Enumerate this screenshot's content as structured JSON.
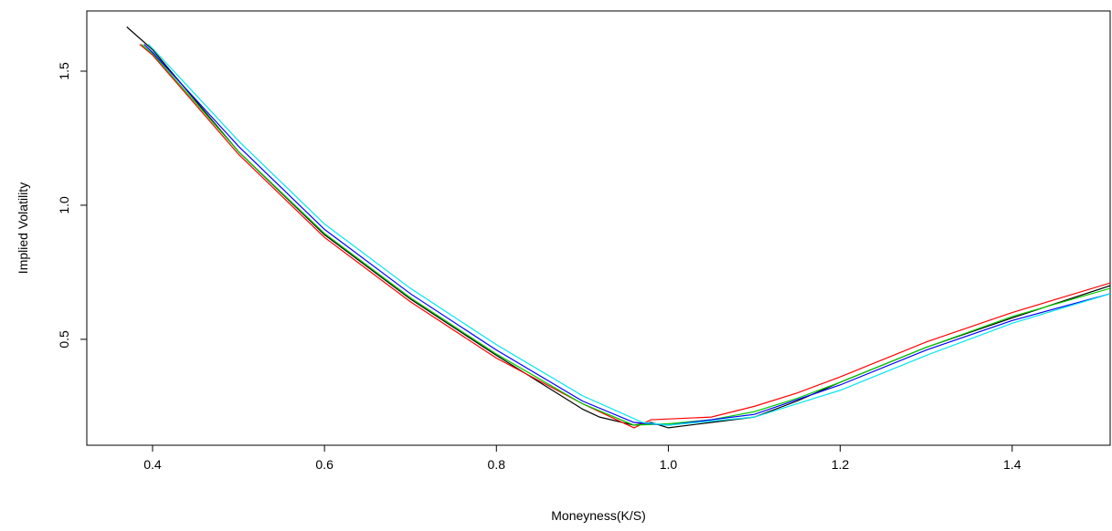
{
  "chart_data": {
    "type": "line",
    "x_label": "Moneyness(K/S)",
    "y_label": "Implied Volatility",
    "xlim": [
      0.3235,
      1.514
    ],
    "ylim": [
      0.105,
      1.7245
    ],
    "xticks": [
      0.4,
      0.6,
      0.8,
      {
        "value": 1,
        "label": "1.0"
      },
      1.2,
      1.4
    ],
    "yticks": [
      0.5,
      {
        "value": 1,
        "label": "1.0"
      },
      1.5
    ],
    "series": [
      {
        "color": "#000000",
        "x": [
          0.37,
          0.4,
          0.5,
          0.6,
          0.7,
          0.8,
          0.9,
          0.92,
          0.96,
          0.98,
          1.0,
          1.05,
          1.1,
          1.15,
          1.2,
          1.3,
          1.4,
          1.514
        ],
        "values": [
          1.665,
          1.58,
          1.2,
          0.89,
          0.65,
          0.44,
          0.24,
          0.21,
          0.18,
          0.19,
          0.17,
          0.19,
          0.21,
          0.27,
          0.34,
          0.47,
          0.58,
          0.7
        ]
      },
      {
        "color": "#ff0000",
        "x": [
          0.385,
          0.4,
          0.5,
          0.6,
          0.7,
          0.8,
          0.9,
          0.96,
          0.98,
          1.05,
          1.1,
          1.15,
          1.2,
          1.3,
          1.4,
          1.514
        ],
        "values": [
          1.6,
          1.56,
          1.19,
          0.88,
          0.64,
          0.43,
          0.26,
          0.17,
          0.2,
          0.21,
          0.25,
          0.3,
          0.36,
          0.49,
          0.6,
          0.71
        ]
      },
      {
        "color": "#00cd00",
        "x": [
          0.387,
          0.4,
          0.5,
          0.6,
          0.7,
          0.8,
          0.9,
          0.96,
          1.0,
          1.05,
          1.1,
          1.15,
          1.2,
          1.3,
          1.4,
          1.514
        ],
        "values": [
          1.6,
          1.565,
          1.2,
          0.895,
          0.655,
          0.445,
          0.26,
          0.18,
          0.185,
          0.2,
          0.23,
          0.28,
          0.34,
          0.47,
          0.585,
          0.69
        ]
      },
      {
        "color": "#0000ff",
        "x": [
          0.39,
          0.4,
          0.5,
          0.6,
          0.7,
          0.8,
          0.9,
          0.96,
          1.0,
          1.1,
          1.2,
          1.3,
          1.4,
          1.514
        ],
        "values": [
          1.6,
          1.57,
          1.22,
          0.91,
          0.67,
          0.46,
          0.27,
          0.19,
          0.18,
          0.22,
          0.33,
          0.46,
          0.57,
          0.67
        ]
      },
      {
        "color": "#00e5ee",
        "x": [
          0.395,
          0.4,
          0.5,
          0.6,
          0.7,
          0.8,
          0.9,
          0.97,
          1.0,
          1.1,
          1.2,
          1.3,
          1.4,
          1.514
        ],
        "values": [
          1.6,
          1.585,
          1.24,
          0.93,
          0.69,
          0.48,
          0.29,
          0.19,
          0.18,
          0.21,
          0.31,
          0.44,
          0.56,
          0.67
        ]
      }
    ]
  }
}
